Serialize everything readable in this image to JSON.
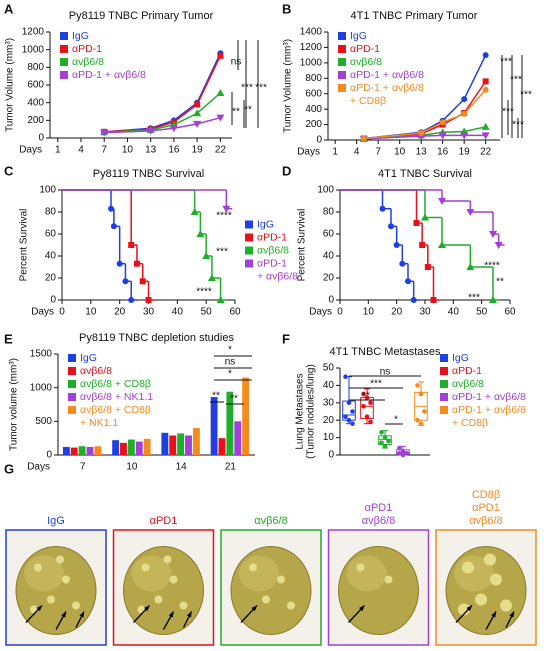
{
  "chart_data": [
    {
      "type": "line",
      "panel": "A",
      "title": "Py8119 TNBC Primary Tumor",
      "ylabel": "Tumor Volume (mm³)",
      "xlabel": "Days",
      "x": [
        7,
        13,
        16,
        19,
        22
      ],
      "xlim": [
        0,
        23.5
      ],
      "xticks": [
        1,
        4,
        7,
        10,
        13,
        16,
        19,
        22
      ],
      "ylim": [
        0,
        1200
      ],
      "yticks": [
        0,
        200,
        400,
        600,
        800,
        1000,
        1200
      ],
      "legend": "upper left",
      "series": [
        {
          "name": "IgG",
          "color": "#1f3fe0",
          "marker": "circle",
          "values": [
            70,
            110,
            200,
            400,
            960
          ]
        },
        {
          "name": "αPD-1",
          "color": "#e8101a",
          "marker": "square",
          "values": [
            70,
            100,
            180,
            380,
            930
          ]
        },
        {
          "name": "αvβ6/8",
          "color": "#1fae2a",
          "marker": "triangle",
          "values": [
            65,
            90,
            150,
            280,
            510
          ]
        },
        {
          "name": "αPD-1 + αvβ6/8",
          "color": "#a23fd6",
          "marker": "triangle-down",
          "values": [
            60,
            80,
            110,
            160,
            230
          ]
        }
      ],
      "annotations": [
        "ns",
        "***",
        "***",
        "**",
        "**"
      ]
    },
    {
      "type": "line",
      "panel": "B",
      "title": "4T1 TNBC Primary Tumor",
      "ylabel": "Tumor Volume (mm³)",
      "xlabel": "Days",
      "x": [
        5,
        13,
        16,
        19,
        22
      ],
      "xlim": [
        0,
        24
      ],
      "xticks": [
        1,
        4,
        7,
        10,
        13,
        16,
        19,
        22
      ],
      "ylim": [
        0,
        1400
      ],
      "yticks": [
        0,
        200,
        400,
        600,
        800,
        1000,
        1200,
        1400
      ],
      "legend": "upper left",
      "series": [
        {
          "name": "IgG",
          "color": "#1f3fe0",
          "marker": "circle",
          "values": [
            20,
            100,
            250,
            530,
            1100
          ]
        },
        {
          "name": "αPD-1",
          "color": "#e8101a",
          "marker": "square",
          "values": [
            20,
            80,
            200,
            350,
            760
          ]
        },
        {
          "name": "αvβ6/8",
          "color": "#1fae2a",
          "marker": "triangle",
          "values": [
            15,
            60,
            100,
            110,
            170
          ]
        },
        {
          "name": "αPD-1 + αvβ6/8",
          "color": "#a23fd6",
          "marker": "triangle-down",
          "values": [
            15,
            50,
            60,
            60,
            60
          ]
        },
        {
          "name": [
            "αPD-1 + αvβ6/8",
            "+ CD8β"
          ],
          "color": "#f58a1f",
          "marker": "circle",
          "values": [
            20,
            90,
            230,
            340,
            650
          ]
        }
      ],
      "annotations": [
        "***",
        "***",
        "***",
        "***",
        "***"
      ]
    },
    {
      "type": "step",
      "panel": "C",
      "title": "Py8119 TNBC Survival",
      "ylabel": "Percent Survival",
      "xlabel": "Days",
      "xlim": [
        0,
        60
      ],
      "xticks": [
        0,
        10,
        20,
        30,
        40,
        50,
        60
      ],
      "ylim": [
        0,
        100
      ],
      "yticks": [
        0,
        20,
        40,
        60,
        80,
        100
      ],
      "legend": "right",
      "series": [
        {
          "name": "IgG",
          "color": "#1f3fe0",
          "marker": "circle",
          "x": [
            0,
            17,
            18,
            20,
            22,
            24
          ],
          "values": [
            100,
            83,
            67,
            33,
            17,
            0
          ]
        },
        {
          "name": "αPD-1",
          "color": "#e8101a",
          "marker": "square",
          "x": [
            0,
            24,
            26,
            28,
            30
          ],
          "values": [
            100,
            50,
            33,
            17,
            0
          ]
        },
        {
          "name": "αvβ6/8",
          "color": "#1fae2a",
          "marker": "triangle",
          "x": [
            0,
            46,
            48,
            50,
            52,
            55
          ],
          "values": [
            100,
            80,
            60,
            40,
            20,
            0
          ]
        },
        {
          "name": [
            "αPD-1",
            "+ αvβ6/8"
          ],
          "color": "#a23fd6",
          "marker": "triangle-down",
          "x": [
            0,
            57
          ],
          "values": [
            100,
            83
          ]
        }
      ],
      "annotations": [
        "****",
        "***",
        "****"
      ]
    },
    {
      "type": "step",
      "panel": "D",
      "title": "4T1 TNBC Survival",
      "ylabel": "Percent Survival",
      "xlabel": "Days",
      "xlim": [
        0,
        60
      ],
      "xticks": [
        0,
        10,
        20,
        30,
        40,
        50,
        60
      ],
      "ylim": [
        0,
        100
      ],
      "yticks": [
        0,
        20,
        40,
        60,
        80,
        100
      ],
      "series": [
        {
          "color": "#1f3fe0",
          "marker": "circle",
          "x": [
            0,
            15,
            18,
            20,
            22,
            24,
            26
          ],
          "values": [
            100,
            83,
            67,
            50,
            33,
            17,
            0
          ]
        },
        {
          "color": "#e8101a",
          "marker": "square",
          "x": [
            0,
            27,
            29,
            31,
            33
          ],
          "values": [
            100,
            70,
            50,
            30,
            0
          ]
        },
        {
          "color": "#1fae2a",
          "marker": "triangle",
          "x": [
            0,
            30,
            36,
            46,
            54
          ],
          "values": [
            100,
            75,
            50,
            30,
            0
          ]
        },
        {
          "color": "#a23fd6",
          "marker": "triangle-down",
          "x": [
            0,
            36,
            46,
            54,
            56
          ],
          "values": [
            100,
            90,
            80,
            60,
            50
          ]
        }
      ],
      "annotations": [
        "****",
        "**",
        "***"
      ]
    },
    {
      "type": "bar",
      "panel": "E",
      "title": "Py8119 TNBC depletion studies",
      "ylabel": "Tumor volume (mm³)",
      "xlabel": "Days",
      "categories": [
        "7",
        "10",
        "14",
        "21"
      ],
      "ylim": [
        0,
        1500
      ],
      "yticks": [
        0,
        500,
        1000,
        1500
      ],
      "legend": "upper left",
      "series": [
        {
          "name": "IgG",
          "color": "#1f3fe0",
          "values": [
            120,
            220,
            330,
            860
          ]
        },
        {
          "name": "αvβ6/8",
          "color": "#e8101a",
          "values": [
            110,
            180,
            290,
            250
          ]
        },
        {
          "name": "αvβ6/8 + CD8β",
          "color": "#1fae2a",
          "values": [
            130,
            230,
            320,
            940
          ]
        },
        {
          "name": "αvβ6/8 + NK1.1",
          "color": "#a23fd6",
          "values": [
            120,
            200,
            290,
            500
          ]
        },
        {
          "name": [
            "αvβ6/8 + CD8β",
            "+ NK1.1"
          ],
          "color": "#f58a1f",
          "values": [
            130,
            240,
            400,
            1150
          ]
        }
      ],
      "annotations": [
        "*",
        "ns",
        "*",
        "**",
        "**"
      ]
    },
    {
      "type": "box",
      "panel": "F",
      "title": "4T1 TNBC Metastases",
      "ylabel": [
        "Lung Metastases",
        "(Tumor nodules/lung)"
      ],
      "ylim": [
        0,
        50
      ],
      "yticks": [
        0,
        10,
        20,
        30,
        40,
        50
      ],
      "legend": "right",
      "series": [
        {
          "name": "IgG",
          "color": "#1f3fe0",
          "min": 18,
          "q1": 20,
          "median": 23,
          "q3": 31,
          "max": 45,
          "values": [
            45,
            30,
            25,
            22,
            20,
            18
          ]
        },
        {
          "name": "αPD-1",
          "color": "#e8101a",
          "min": 18,
          "q1": 21,
          "median": 28,
          "q3": 33,
          "max": 38,
          "values": [
            35,
            33,
            30,
            28,
            22,
            19
          ]
        },
        {
          "name": "αvβ6/8",
          "color": "#1fae2a",
          "min": 4,
          "q1": 6,
          "median": 9,
          "q3": 11,
          "max": 14,
          "values": [
            13,
            10,
            8,
            7,
            5
          ]
        },
        {
          "name": "αPD-1 + αvβ6/8",
          "color": "#a23fd6",
          "min": 0,
          "q1": 0.5,
          "median": 1.5,
          "q3": 3,
          "max": 5,
          "values": [
            4,
            2,
            1,
            1,
            0
          ]
        },
        {
          "name": [
            "αPD-1 + αvβ6/8",
            "+ CD8β"
          ],
          "color": "#f58a1f",
          "min": 17,
          "q1": 20,
          "median": 28,
          "q3": 36,
          "max": 42,
          "values": [
            40,
            35,
            25,
            20,
            18
          ]
        }
      ],
      "annotations": [
        "ns",
        "***",
        "**",
        "*"
      ]
    }
  ],
  "photos": {
    "panel": "G",
    "items": [
      {
        "label": [
          "IgG"
        ],
        "color": "#1f3fe0"
      },
      {
        "label": [
          "αPD1"
        ],
        "color": "#e8101a"
      },
      {
        "label": [
          "αvβ6/8"
        ],
        "color": "#1fae2a"
      },
      {
        "label": [
          "αPD1",
          "αvβ6/8"
        ],
        "color": "#a23fd6"
      },
      {
        "label": [
          "CD8β",
          "αPD1",
          "αvβ6/8"
        ],
        "color": "#f58a1f"
      }
    ]
  }
}
